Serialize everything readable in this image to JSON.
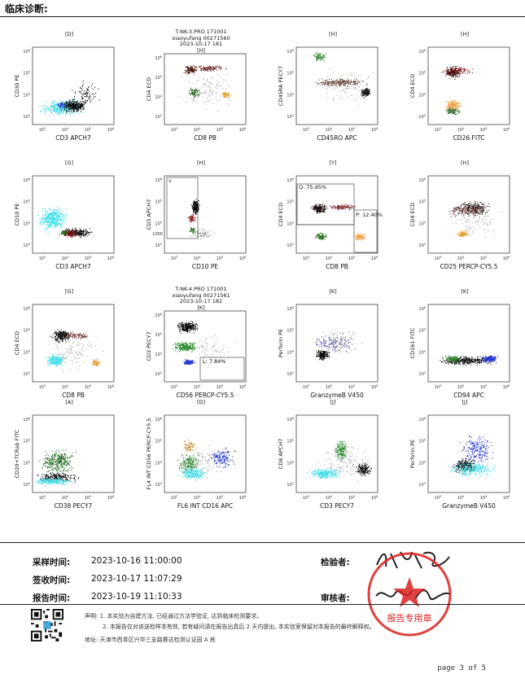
{
  "header": {
    "title": "临床诊断:"
  },
  "panels": [
    {
      "gate": "[D]",
      "x": "CD3 APCH7",
      "y": "CD30 PE"
    },
    {
      "gate_lines": [
        "T-NK-3.PRO 171001",
        "xiaoyufang 00271560",
        "2023-10-17 181",
        "[H]"
      ],
      "x": "CD8 PB",
      "y": "CD4 ECD"
    },
    {
      "gate": "[H]",
      "x": "CD45RO APC",
      "y": "CD45RA PECY7"
    },
    {
      "gate": "[H]",
      "x": "CD26 FITC",
      "y": "CD4 ECD"
    },
    {
      "gate": "[G]",
      "x": "CD3 APCH7",
      "y": "CD10 PE"
    },
    {
      "gate": "[H]",
      "x": "CD10 PE",
      "y": "CD3 APCH7",
      "region": "Y",
      "ytick_extra": "1000"
    },
    {
      "gate": "[Y]",
      "x": "CD8 PB",
      "y": "CD4 ECD",
      "q_label": "Q: 75.95%",
      "p_label": "P: 12.40%"
    },
    {
      "gate": "[H]",
      "x": "CD25 PERCP-CY5.5",
      "y": "CD4 ECD"
    },
    {
      "gate": "[G]",
      "x": "CD8 PB",
      "y": "CD4 ECD"
    },
    {
      "gate_lines": [
        "T-NK-4.PRO 171001",
        "xiaoyufang 00271561",
        "2023-10-17 182",
        "[K]"
      ],
      "x": "CD56 PERCP-CY5.5",
      "y": "CD3 PECY7",
      "l_label": "L: 7.84%"
    },
    {
      "gate": "[K]",
      "x": "GranzymeB V450",
      "y": "Perforin PE"
    },
    {
      "gate": "[K]",
      "x": "CD94 APC",
      "y": "CD161 FITC"
    },
    {
      "gate": "[A]",
      "x": "CD38 PECY7",
      "y": "CD20+TCRab FITC"
    },
    {
      "gate": "[D]",
      "x": "FL6 INT CD16 APC",
      "y": "FL4 INT CD56 PERCP-CY5.5"
    },
    {
      "gate": "[J]",
      "x": "CD3 PECY7",
      "y": "CD8 APCH7"
    },
    {
      "gate": "[J]",
      "x": "GranzymeB V450",
      "y": "Perforin PE"
    }
  ],
  "info": {
    "sample_time_label": "采样时间:",
    "sample_time": "2023-10-16  11:00:00",
    "receive_time_label": "签收时间:",
    "receive_time": "2023-10-17  11:07:29",
    "report_time_label": "报告时间:",
    "report_time": "2023-10-19  11:10:33",
    "inspector_label": "检验者:",
    "reviewer_label": "审核者:"
  },
  "notes": {
    "line1": "声明: 1. 本实验为自建方法, 已经通过方法学验证, 达到临床检测要求。",
    "line2": "2. 本报告仅对该送检样本有效, 若有疑问请在报告出具后 2 天内提出, 本实验室保留对本报告的最终解释权。",
    "address": "地址: 天津市西青区兴华三支路赛达检测认证园 A 栋"
  },
  "page": "page 3 of 5",
  "stamp": {
    "text": "报告专用章",
    "color": "#d8201d"
  }
}
